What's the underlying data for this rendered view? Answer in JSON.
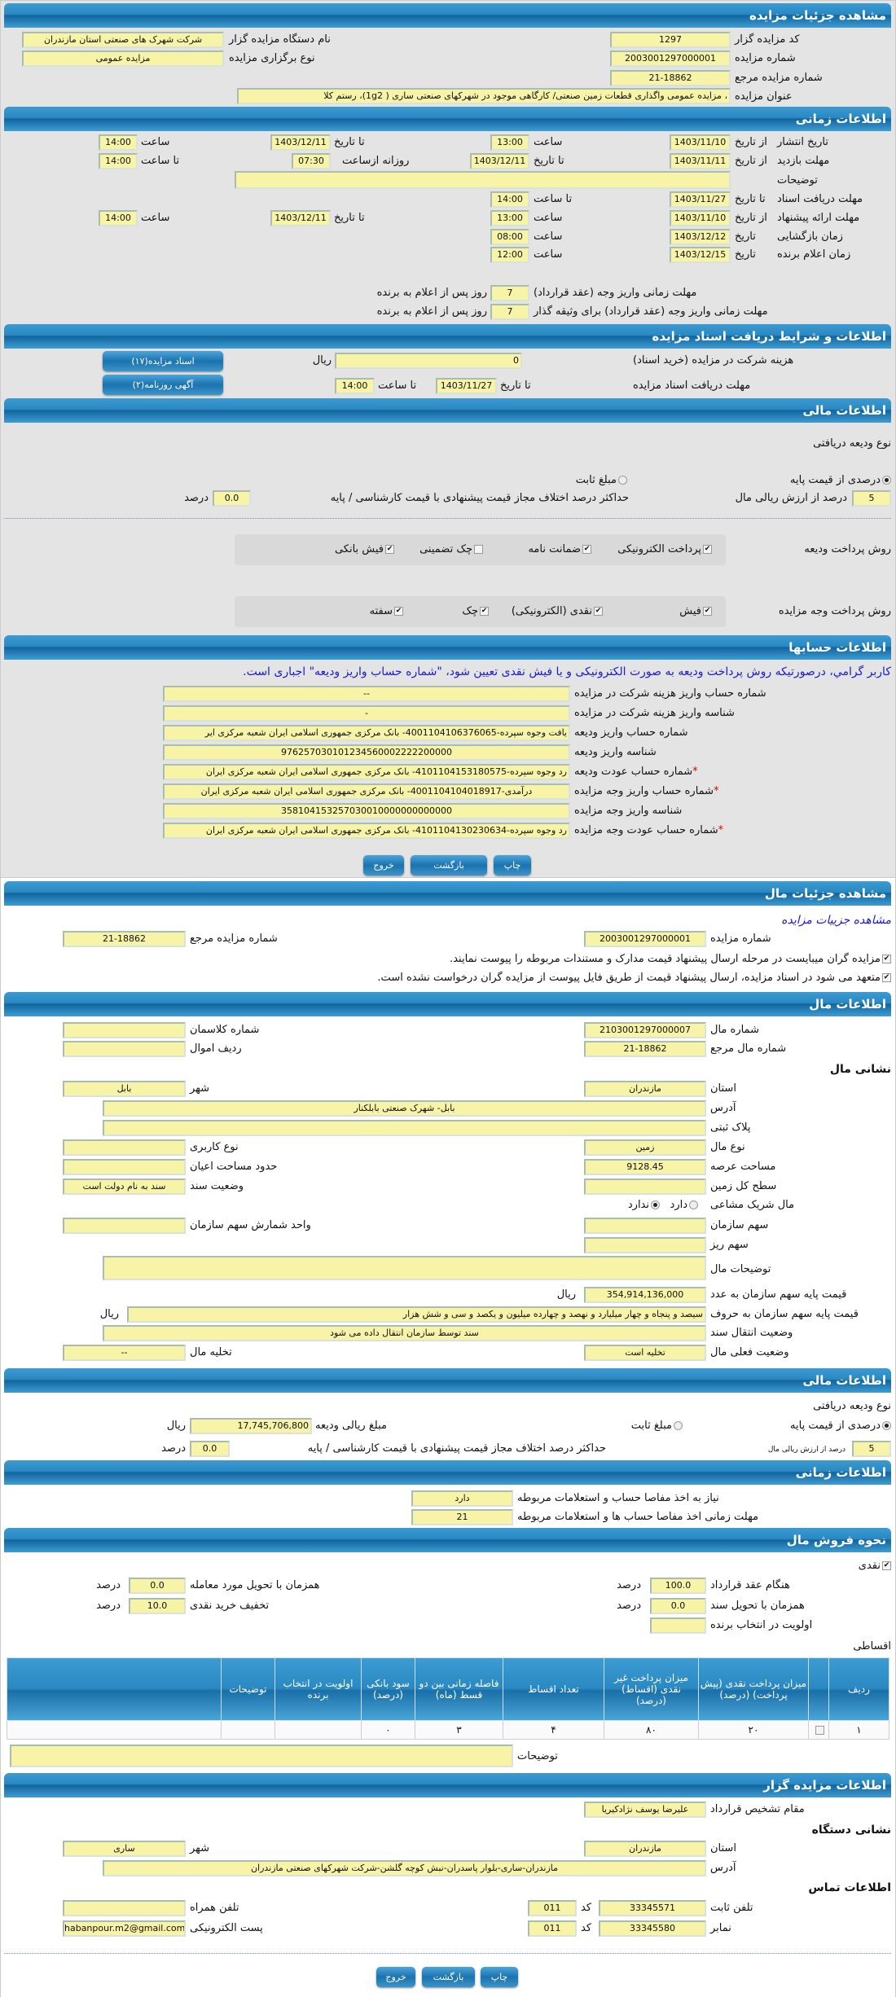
{
  "auction": {
    "title": "مشاهده جزئیات مزایده",
    "code_label": "کد مزایده گزار",
    "code": "1297",
    "number_label": "شماره مزایده",
    "number": "2003001297000001",
    "ref_label": "شماره مزایده مرجع",
    "ref": "21-18862",
    "subject_label": "عنوان مزایده",
    "subject": "، مزایده عمومی واگذاری قطعات زمین صنعتی/ کارگاهی موجود در شهرکهای صنعتی  ساری ( 1g2)، رستم کلا",
    "org_label": "نام دستگاه مزایده گزار",
    "org": "شرکت شهرک های صنعتی استان مازندران",
    "type_label": "نوع برگزاری مزایده",
    "type": "مزایده عمومی"
  },
  "time": {
    "title": "اطلاعات زمانی",
    "from_date": "از تاریخ",
    "to_date": "تا تاریخ",
    "date": "تاریخ",
    "hour": "ساعت",
    "to_hour": "تا ساعت",
    "daily_from": "روزانه ازساعت",
    "notes_label": "توضیحات",
    "publish": {
      "label": "تاریخ انتشار",
      "from": "1403/11/10",
      "from_time": "13:00",
      "to": "1403/12/11",
      "to_time": "14:00"
    },
    "visit": {
      "label": "مهلت بازدید",
      "from": "1403/11/11",
      "to": "1403/12/11",
      "daily_from": "07:30",
      "to_time": "14:00"
    },
    "docs": {
      "label": "مهلت دریافت اسناد",
      "to": "1403/11/27",
      "to_time": "14:00"
    },
    "offer": {
      "label": "مهلت ارائه پیشنهاد",
      "from": "1403/11/10",
      "from_time": "13:00",
      "to": "1403/12/11",
      "to_time": "14:00"
    },
    "opening": {
      "label": "زمان بازگشایی",
      "date": "1403/12/12",
      "time": "08:00"
    },
    "winner": {
      "label": "زمان اعلام برنده",
      "date": "1403/12/15",
      "time": "12:00"
    },
    "pay_deadline_label": "مهلت زمانی واریز وجه (عقد قرارداد)",
    "pay_deadline": "7",
    "pay_deadline_guarantor_label": "مهلت زمانی واریز وجه (عقد قرارداد) برای وثیقه گذار",
    "pay_deadline_guarantor": "7",
    "days_suffix": "روز پس از اعلام به برنده"
  },
  "docs_section": {
    "title": "اطلاعات و شرایط دریافت اسناد مزایده",
    "fee_label": "هزینه شرکت در مزایده (خرید اسناد)",
    "fee": "0",
    "rial": "ریال",
    "deadline_label": "مهلت دریافت اسناد مزایده",
    "to_date": "تا تاریخ",
    "date": "1403/11/27",
    "to_hour": "تا ساعت",
    "time": "14:00",
    "docs_button": "اسناد مزایده(۱۷)",
    "ad_button": "آگهی روزنامه(۲)"
  },
  "finance": {
    "title": "اطلاعات مالی",
    "deposit_type_label": "نوع ودیعه دریافتی",
    "percent_option": "درصدی از قیمت پایه",
    "fixed_option": "مبلغ ثابت",
    "selected": "درصدی از قیمت پایه",
    "percent": "5",
    "percent_suffix": "درصد از ارزش ریالی مال",
    "max_diff_label": "حداکثر درصد اختلاف مجاز قیمت پیشنهادی با قیمت کارشناسی / پایه",
    "max_diff": "0.0",
    "percent_word": "درصد",
    "deposit_methods_label": "روش پرداخت ودیعه",
    "deposit_methods": [
      {
        "label": "پرداخت الکترونیکی",
        "checked": true
      },
      {
        "label": "ضمانت نامه",
        "checked": true
      },
      {
        "label": "چک تضمینی",
        "checked": false
      },
      {
        "label": "فیش بانکی",
        "checked": true
      }
    ],
    "payment_methods_label": "روش پرداخت وجه مزایده",
    "payment_methods": [
      {
        "label": "فیش",
        "checked": true
      },
      {
        "label": "نقدی (الکترونیکی)",
        "checked": true
      },
      {
        "label": "چک",
        "checked": true
      },
      {
        "label": "سفته",
        "checked": true
      }
    ]
  },
  "accounts": {
    "title": "اطلاعات حسابها",
    "notice": "کاربر گرامي، درصورتیکه روش پرداخت ودیعه به صورت الکترونیکی و یا فیش نقدی تعیین شود، \"شماره حساب واریز ودیعه\" اجباری است.",
    "rows": [
      {
        "label": "شماره حساب واریز هزینه شرکت در مزایده",
        "value": "--",
        "required": false
      },
      {
        "label": "شناسه واریز هزینه شرکت در مزایده",
        "value": "-",
        "required": false
      },
      {
        "label": "شماره حساب واریز ودیعه",
        "value": "یافت وجوه سپرده-4001104106376065- بانک مرکزی جمهوری اسلامی ایران شعبه مرکزی ایر",
        "required": false
      },
      {
        "label": "شناسه واریز ودیعه",
        "value": "976257030101234560002222200000",
        "required": false
      },
      {
        "label": "شماره حساب عودت ودیعه",
        "value": "رد وجوه سپرده-4101104153180575- بانک مرکزی جمهوری اسلامی ایران شعبه مرکزی ایران",
        "required": true
      },
      {
        "label": "شماره حساب واریز وجه مزایده",
        "value": "درآمدی-4001104104018917- بانک مرکزی جمهوری اسلامی ایران شعبه مرکزی ایران",
        "required": true
      },
      {
        "label": "شناسه واریز وجه مزایده",
        "value": "358104153257030010000000000000",
        "required": false
      },
      {
        "label": "شماره حساب عودت وجه مزایده",
        "value": "رد وجوه سپرده-4101104130230634- بانک مرکزی جمهوری اسلامی ایران شعبه مرکزی ایران",
        "required": true
      }
    ]
  },
  "buttons": {
    "print": "چاپ",
    "back": "بازگشت",
    "exit": "خروج"
  },
  "item": {
    "title": "مشاهده جزئیات مال",
    "link": "مشاهده جزییات مزایده",
    "auction_number_label": "شماره مزایده",
    "auction_number": "2003001297000001",
    "ref_label": "شماره مزایده مرجع",
    "ref": "21-18862",
    "check1": "مزایده گران میبایست در مرحله ارسال پیشنهاد قیمت مدارک و مستندات مربوطه را پیوست نمایند.",
    "check2": "متعهد می شود در اسناد مزایده، ارسال پیشنهاد قیمت از طریق فایل پیوست از مزایده گران درخواست نشده است."
  },
  "item_info": {
    "title": "اطلاعات مال",
    "number_label": "شماره مال",
    "number": "2103001297000007",
    "class_label": "شماره کلاسمان",
    "class": "",
    "ref_label": "شماره مال مرجع",
    "ref": "21-18862",
    "row_label": "ردیف اموال",
    "row": "",
    "address_title": "نشانی مال",
    "province_label": "استان",
    "province": "مازندران",
    "city_label": "شهر",
    "city": "بابل",
    "address_label": "آدرس",
    "address": "بابل- شهرک صنعتی بابلکنار",
    "plate_label": "پلاک ثبتی",
    "plate": "",
    "kind_label": "نوع مال",
    "kind": "زمین",
    "usage_label": "نوع کاربری",
    "usage": "",
    "area_label": "مساحت عرصه",
    "area": "9128.45",
    "building_label": "حدود مساحت اعیان",
    "building": "",
    "total_label": "سطح کل زمین",
    "total": "",
    "deed_label": "وضعیت سند",
    "deed": "سند به نام دولت است",
    "shared_label": "مال شریک مشاعی",
    "shared_yes": "دارد",
    "shared_no": "ندارد",
    "shared_selected": "ندارد",
    "share_label": "سهم سازمان",
    "share": "",
    "share_unit_label": "واحد شمارش سهم سازمان",
    "share_unit": "",
    "small_share_label": "سهم ریز",
    "small_share": "",
    "notes_label": "توضیحات مال",
    "notes": "",
    "price_num_label": "قیمت پایه سهم سازمان به عدد",
    "price_num": "354,914,136,000",
    "price_text_label": "قیمت پایه سهم سازمان به حروف",
    "price_text": "سیصد و پنجاه و چهار میلیارد و نهصد و چهارده میلیون و یکصد و سی و شش هزار",
    "rial": "ریال",
    "transfer_label": "وضعیت انتقال سند",
    "transfer": "سند توسط سازمان انتقال داده می شود",
    "status_label": "وضعیت فعلی مال",
    "status": "تخلیه است",
    "evac_label": "تخلیه مال",
    "evac": "--"
  },
  "finance2": {
    "title": "اطلاعات مالی",
    "deposit_type_label": "نوع ودیعه دریافتی",
    "percent_option": "درصدی از قیمت پایه",
    "fixed_option": "مبلغ ثابت",
    "amount_label": "مبلغ ریالی ودیعه",
    "amount": "17,745,706,800",
    "rial": "ریال",
    "percent": "5",
    "percent_suffix": "درصد از ارزش ریالی مال",
    "max_diff_label": "حداکثر درصد اختلاف مجاز قیمت پیشنهادی با قیمت کارشناسی / پایه",
    "max_diff": "0.0",
    "percent_word": "درصد"
  },
  "time2": {
    "title": "اطلاعات زمانی",
    "clearance_label": "نیاز به اخذ مفاصا حساب و استعلامات مربوطه",
    "clearance": "دارد",
    "clearance_deadline_label": "مهلت زمانی اخذ مفاصا حساب ها و استعلامات مربوطه",
    "clearance_deadline": "21"
  },
  "sale": {
    "title": "نحوه فروش مال",
    "cash_label": "نقدی",
    "contract_label": "هنگام عقد قرارداد",
    "contract": "100.0",
    "delivery_label": "همزمان با تحویل مورد معامله",
    "delivery": "0.0",
    "deed_label": "همزمان با تحویل سند",
    "deed": "0.0",
    "discount_label": "تخفیف خرید نقدی",
    "discount": "10.0",
    "priority_label": "اولویت در انتخاب برنده",
    "priority": "",
    "percent_word": "درصد",
    "installment_label": "اقساطی",
    "table": {
      "headers": [
        "ردیف",
        "",
        "میزان پرداخت نقدی (پیش پرداخت) (درصد)",
        "میزان پرداخت غیر نقدی (اقساط) (درصد)",
        "تعداد اقساط",
        "فاصله زمانی بین دو قسط (ماه)",
        "سود بانکی (درصد)",
        "اولویت در انتخاب برنده",
        "توضیحات",
        ""
      ],
      "rows": [
        [
          "۱",
          "",
          "۲۰",
          "۸۰",
          "۴",
          "۳",
          "۰",
          "",
          "",
          ""
        ]
      ]
    },
    "notes_label": "توضیحات",
    "notes": ""
  },
  "seller": {
    "title": "اطلاعات مزایده گزار",
    "authority_label": "مقام تشخیص قرارداد",
    "authority": "علیرضا یوسف نژادکیریا",
    "address_title": "نشانی دستگاه",
    "province_label": "استان",
    "province": "مازندران",
    "city_label": "شهر",
    "city": "ساری",
    "address_label": "آدرس",
    "address": "مازندران-ساری-بلوار پاسدران-نبش کوچه گلشن-شرکت شهرکهای صنعتی مازندران",
    "contact_title": "اطلاعات تماس",
    "phone_label": "تلفن ثابت",
    "phone": "33345571",
    "code_label": "کد",
    "phone_code": "011",
    "mobile_label": "تلفن همراه",
    "mobile": "",
    "fax_label": "نمابر",
    "fax": "33345580",
    "fax_code": "011",
    "email_label": "پست الکترونیکی",
    "email": "habanpour.m2@gmail.com"
  },
  "colors": {
    "header": "#2a88c2",
    "field": "#f7f4a8",
    "panel": "#e4e4e4",
    "link": "#1b1bd0"
  }
}
